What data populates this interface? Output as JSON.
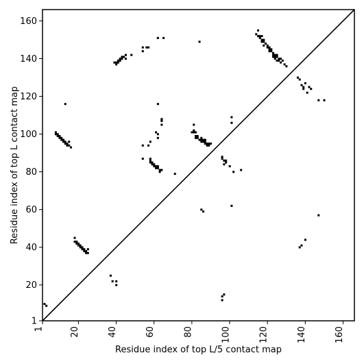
{
  "chart_data": {
    "type": "heatmap",
    "xlabel": "Residue index of top L/5 contact map",
    "ylabel": "Residue index of top L contact map",
    "xlim": [
      1,
      166
    ],
    "ylim": [
      1,
      166
    ],
    "x_ticks": [
      1,
      20,
      40,
      60,
      80,
      100,
      120,
      140,
      160
    ],
    "y_ticks": [
      1,
      20,
      40,
      60,
      80,
      100,
      120,
      140,
      160
    ],
    "x_tick_labels": [
      "1",
      "20",
      "40",
      "60",
      "80",
      "100",
      "120",
      "140",
      "160"
    ],
    "y_tick_labels": [
      "1",
      "20",
      "40",
      "60",
      "80",
      "100",
      "120",
      "140",
      "160"
    ],
    "x_tick_rotation": -90,
    "grid": false,
    "diagonal": true,
    "colors": {
      "contact": "#000000",
      "frame": "#000000",
      "background": "#ffffff"
    },
    "upper_contacts": [
      [
        8,
        101
      ],
      [
        8,
        100
      ],
      [
        9,
        100
      ],
      [
        9,
        99
      ],
      [
        10,
        99
      ],
      [
        10,
        98
      ],
      [
        11,
        98
      ],
      [
        11,
        97
      ],
      [
        12,
        97
      ],
      [
        12,
        96
      ],
      [
        13,
        96
      ],
      [
        13,
        95
      ],
      [
        14,
        95
      ],
      [
        14,
        94
      ],
      [
        15,
        96
      ],
      [
        15,
        94
      ],
      [
        16,
        93
      ],
      [
        13,
        116
      ],
      [
        18,
        45
      ],
      [
        18,
        43
      ],
      [
        19,
        43
      ],
      [
        19,
        42
      ],
      [
        20,
        42
      ],
      [
        20,
        41
      ],
      [
        21,
        41
      ],
      [
        21,
        40
      ],
      [
        22,
        40
      ],
      [
        22,
        39
      ],
      [
        23,
        39
      ],
      [
        23,
        38
      ],
      [
        24,
        38
      ],
      [
        24,
        37
      ],
      [
        25,
        39
      ],
      [
        25,
        37
      ],
      [
        39,
        138
      ],
      [
        40,
        138
      ],
      [
        40,
        137
      ],
      [
        41,
        139
      ],
      [
        41,
        138
      ],
      [
        42,
        140
      ],
      [
        42,
        139
      ],
      [
        43,
        141
      ],
      [
        43,
        140
      ],
      [
        44,
        141
      ],
      [
        45,
        142
      ],
      [
        45,
        140
      ],
      [
        48,
        142
      ],
      [
        54,
        146
      ],
      [
        54,
        144
      ],
      [
        56,
        146
      ],
      [
        57,
        146
      ],
      [
        62,
        151
      ],
      [
        65,
        151
      ],
      [
        54,
        94
      ],
      [
        54,
        87
      ],
      [
        57,
        94
      ],
      [
        58,
        96
      ],
      [
        58,
        87
      ],
      [
        58,
        86
      ],
      [
        58,
        85
      ],
      [
        59,
        85
      ],
      [
        59,
        84
      ],
      [
        60,
        84
      ],
      [
        60,
        83
      ],
      [
        61,
        83
      ],
      [
        61,
        82
      ],
      [
        62,
        83
      ],
      [
        62,
        82
      ],
      [
        63,
        81
      ],
      [
        63,
        80
      ],
      [
        64,
        81
      ],
      [
        61,
        101
      ],
      [
        62,
        100
      ],
      [
        62,
        98
      ],
      [
        62,
        116
      ],
      [
        64,
        105
      ],
      [
        64,
        107
      ],
      [
        64,
        108
      ],
      [
        71,
        79
      ],
      [
        80,
        101
      ],
      [
        81,
        105
      ],
      [
        81,
        102
      ],
      [
        81,
        101
      ],
      [
        82,
        101
      ],
      [
        82,
        99
      ],
      [
        82,
        98
      ],
      [
        83,
        99
      ],
      [
        83,
        98
      ],
      [
        84,
        97
      ],
      [
        84,
        149
      ],
      [
        85,
        98
      ],
      [
        85,
        97
      ],
      [
        85,
        96
      ],
      [
        86,
        97
      ],
      [
        86,
        96
      ],
      [
        87,
        97
      ],
      [
        87,
        96
      ],
      [
        87,
        95
      ],
      [
        88,
        95
      ],
      [
        88,
        94
      ],
      [
        89,
        95
      ],
      [
        89,
        94
      ],
      [
        90,
        95
      ],
      [
        96,
        88
      ],
      [
        96,
        87
      ],
      [
        97,
        86
      ],
      [
        97,
        84
      ],
      [
        98,
        86
      ],
      [
        98,
        85
      ],
      [
        100,
        83
      ],
      [
        101,
        106
      ],
      [
        101,
        109
      ],
      [
        102,
        80
      ],
      [
        106,
        81
      ],
      [
        114,
        153
      ],
      [
        115,
        155
      ],
      [
        115,
        152
      ],
      [
        116,
        152
      ],
      [
        116,
        151
      ],
      [
        117,
        152
      ],
      [
        117,
        150
      ],
      [
        117,
        149
      ],
      [
        118,
        150
      ],
      [
        118,
        149
      ],
      [
        118,
        147
      ],
      [
        119,
        148
      ],
      [
        120,
        147
      ],
      [
        120,
        146
      ],
      [
        121,
        146
      ],
      [
        121,
        145
      ],
      [
        121,
        144
      ],
      [
        122,
        145
      ],
      [
        122,
        144
      ],
      [
        123,
        143
      ],
      [
        123,
        142
      ],
      [
        123,
        141
      ],
      [
        124,
        142
      ],
      [
        124,
        141
      ],
      [
        124,
        140
      ],
      [
        125,
        142
      ],
      [
        125,
        141
      ],
      [
        125,
        139
      ],
      [
        126,
        140
      ],
      [
        126,
        139
      ],
      [
        127,
        140
      ],
      [
        127,
        138
      ],
      [
        128,
        139
      ],
      [
        129,
        137
      ],
      [
        130,
        136
      ],
      [
        136,
        130
      ],
      [
        137,
        129
      ],
      [
        138,
        126
      ],
      [
        139,
        125
      ],
      [
        139,
        124
      ],
      [
        140,
        127
      ],
      [
        141,
        122
      ],
      [
        142,
        125
      ],
      [
        143,
        124
      ],
      [
        147,
        118
      ],
      [
        150,
        118
      ]
    ],
    "lower_contacts": [
      [
        2,
        10
      ],
      [
        3,
        9
      ],
      [
        37,
        25
      ],
      [
        38,
        22
      ],
      [
        40,
        22
      ],
      [
        40,
        20
      ],
      [
        85,
        60
      ],
      [
        86,
        59
      ],
      [
        96,
        12
      ],
      [
        96,
        14
      ],
      [
        97,
        15
      ],
      [
        101,
        62
      ],
      [
        137,
        40
      ],
      [
        138,
        41
      ],
      [
        140,
        44
      ],
      [
        147,
        57
      ]
    ]
  }
}
